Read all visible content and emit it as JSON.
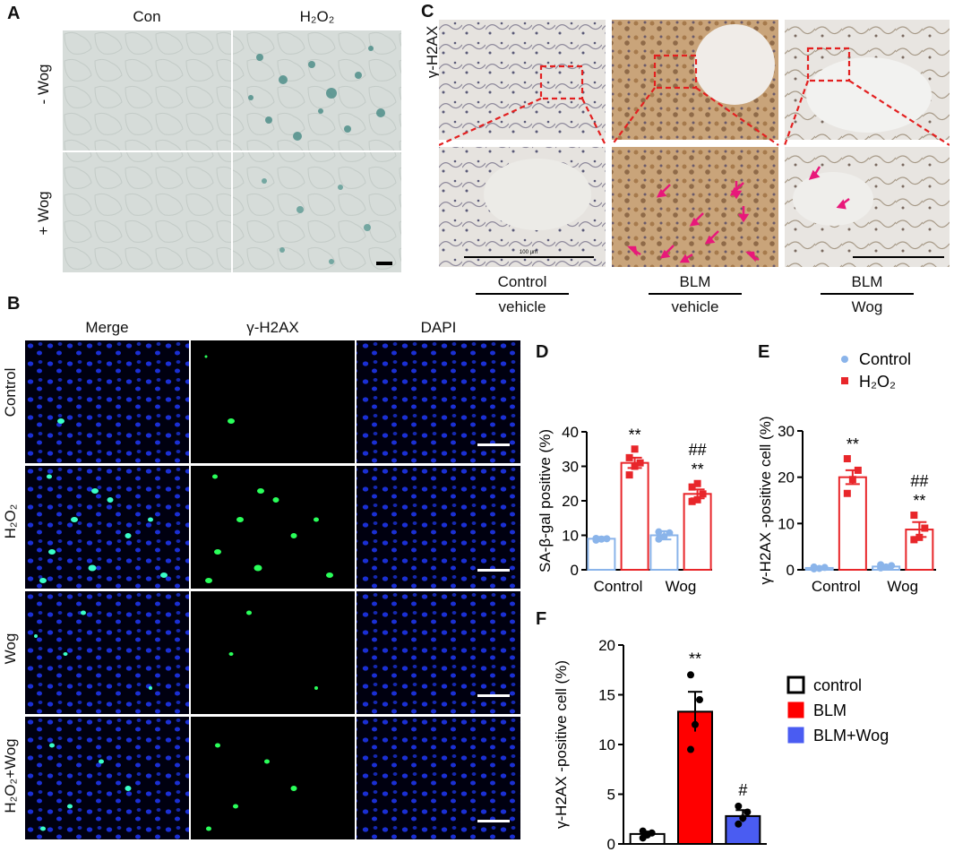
{
  "panels": {
    "A": {
      "label": "A",
      "col_headers": [
        "Con",
        "H₂O₂"
      ],
      "row_labels": [
        "- Wog",
        "+ Wog"
      ]
    },
    "B": {
      "label": "B",
      "col_headers": [
        "Merge",
        "γ-H2AX",
        "DAPI"
      ],
      "row_labels": [
        "Control",
        "H₂O₂",
        "Wog",
        "H₂O₂+Wog"
      ]
    },
    "C": {
      "label": "C",
      "side_label": "γ-H2AX",
      "scale_text": "100 µm",
      "groups": [
        {
          "top": "Control",
          "bottom": "vehicle"
        },
        {
          "top": "BLM",
          "bottom": "vehicle"
        },
        {
          "top": "BLM",
          "bottom": "Wog"
        }
      ]
    },
    "D": {
      "label": "D"
    },
    "E": {
      "label": "E"
    },
    "F": {
      "label": "F"
    }
  },
  "colors": {
    "control_blue": "#8ab4ea",
    "h2o2_red": "#e8262a",
    "blm_fill": "#ff0000",
    "wog_fill": "#4a5cf2",
    "arrow_pink": "#e8187a",
    "dashed_red": "#e32020",
    "nuclei_blue": "#1a2fd4",
    "foci_green": "#2aff5a"
  },
  "chart_data": [
    {
      "id": "D",
      "type": "bar",
      "ylabel": "SA-β-gal  positive  (%)",
      "ylim": [
        0,
        40
      ],
      "yticks": [
        0,
        10,
        20,
        30,
        40
      ],
      "groups": [
        "Control",
        "Wog"
      ],
      "series": [
        {
          "name": "Control",
          "values": [
            9,
            10
          ],
          "err": [
            0.5,
            1.2
          ],
          "points": [
            [
              8.6,
              8.9,
              9.0,
              9.1
            ],
            [
              8.9,
              9.6,
              10.7,
              11.0
            ]
          ]
        },
        {
          "name": "H₂O₂",
          "values": [
            31,
            22
          ],
          "err": [
            1.5,
            1.3
          ],
          "points": [
            [
              27.5,
              30.0,
              31.0,
              32.5,
              35.0
            ],
            [
              19.8,
              20.3,
              22.0,
              24.0,
              25.0
            ]
          ]
        }
      ],
      "annotations": [
        {
          "group": "Control",
          "series": "H₂O₂",
          "lines": [
            "**"
          ]
        },
        {
          "group": "Wog",
          "series": "H₂O₂",
          "lines": [
            "##",
            "**"
          ]
        }
      ]
    },
    {
      "id": "E",
      "type": "bar",
      "ylabel": "γ-H2AX -positive cell (%)",
      "ylim": [
        0,
        30
      ],
      "yticks": [
        0,
        10,
        20,
        30
      ],
      "groups": [
        "Control",
        "Wog"
      ],
      "legend": [
        "Control",
        "H₂O₂"
      ],
      "legend_position": "top-right",
      "series": [
        {
          "name": "Control",
          "values": [
            0.4,
            0.7
          ],
          "err": [
            0.2,
            0.3
          ],
          "points": [
            [
              0.2,
              0.3,
              0.5,
              0.6
            ],
            [
              0.4,
              0.6,
              0.9,
              1.1
            ]
          ]
        },
        {
          "name": "H₂O₂",
          "values": [
            20,
            8.7
          ],
          "err": [
            1.5,
            1.6
          ],
          "points": [
            [
              16.5,
              19.5,
              21.5,
              24.0
            ],
            [
              6.5,
              7.0,
              9.0,
              11.8
            ]
          ]
        }
      ],
      "annotations": [
        {
          "group": "Control",
          "series": "H₂O₂",
          "lines": [
            "**"
          ]
        },
        {
          "group": "Wog",
          "series": "H₂O₂",
          "lines": [
            "##",
            "**"
          ]
        }
      ]
    },
    {
      "id": "F",
      "type": "bar",
      "ylabel": "γ-H2AX -positive cell (%)",
      "ylim": [
        0,
        20
      ],
      "yticks": [
        0,
        5,
        10,
        15,
        20
      ],
      "categories": [
        "control",
        "BLM",
        "BLM+Wog"
      ],
      "values": [
        1.0,
        13.3,
        2.8
      ],
      "err": [
        0.25,
        2.0,
        0.6
      ],
      "points": [
        [
          0.6,
          0.9,
          1.1,
          1.3
        ],
        [
          9.5,
          12.0,
          14.5,
          17.0
        ],
        [
          2.0,
          2.6,
          3.2,
          3.8
        ]
      ],
      "fills": [
        "#ffffff",
        "#ff0000",
        "#4a5cf2"
      ],
      "legend": [
        "control",
        "BLM",
        "BLM+Wog"
      ],
      "legend_position": "right",
      "annotations": [
        {
          "category": "BLM",
          "text": "**"
        },
        {
          "category": "BLM+Wog",
          "text": "#"
        }
      ]
    }
  ]
}
